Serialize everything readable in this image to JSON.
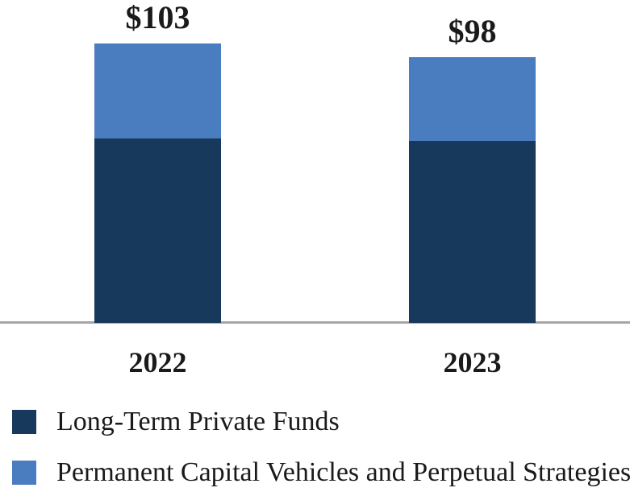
{
  "chart_data": {
    "type": "bar",
    "stacked": true,
    "title": "",
    "categories": [
      "2022",
      "2023"
    ],
    "series": [
      {
        "name": "Long-Term Private Funds",
        "values": [
          68,
          67
        ],
        "color": "#17395C"
      },
      {
        "name": "Permanent Capital Vehicles and Perpetual Strategies",
        "values": [
          35,
          31
        ],
        "color": "#4A7CC0"
      }
    ],
    "totals": [
      103,
      98
    ],
    "total_labels": [
      "$103",
      "$98"
    ],
    "value_prefix": "$",
    "ylim": [
      0,
      115
    ],
    "grid": false,
    "legend_position": "bottom-left",
    "axis_line_color": "#A6A6A6",
    "text_color": "#1A1A1A",
    "background_color": "#FFFFFF"
  }
}
